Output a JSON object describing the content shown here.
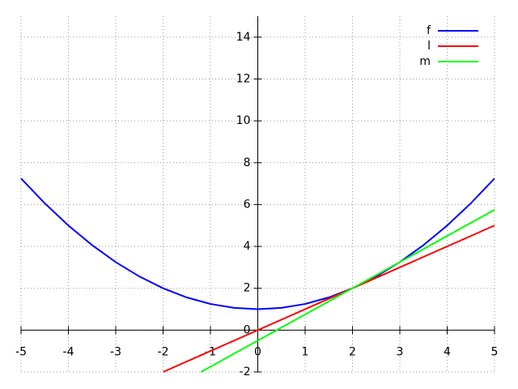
{
  "chart_data": {
    "type": "line",
    "xlim": [
      -5,
      5
    ],
    "xticks": [
      -5,
      -4,
      -3,
      -2,
      -1,
      0,
      1,
      2,
      3,
      4,
      5
    ],
    "ylim": [
      -2,
      15
    ],
    "yticks": [
      -2,
      0,
      2,
      4,
      6,
      8,
      10,
      12,
      14
    ],
    "grid": true,
    "legend": "top-right",
    "series": [
      {
        "name": "f",
        "color": "#0000ff",
        "x": [
          -5,
          -4.5,
          -4,
          -3.5,
          -3,
          -2.5,
          -2,
          -1.5,
          -1,
          -0.5,
          0,
          0.5,
          1,
          1.5,
          2,
          2.5,
          3,
          3.5,
          4,
          4.5,
          5
        ],
        "values": [
          7.25,
          6.0625,
          5,
          4.0625,
          3.25,
          2.5625,
          2,
          1.5625,
          1.25,
          1.0625,
          1,
          1.0625,
          1.25,
          1.5625,
          2,
          2.5625,
          3.25,
          4.0625,
          5,
          6.0625,
          7.25
        ]
      },
      {
        "name": "l",
        "color": "#ff0000",
        "x": [
          -2,
          5
        ],
        "values": [
          -2,
          5
        ]
      },
      {
        "name": "m",
        "color": "#00ff00",
        "x": [
          -1.2,
          5
        ],
        "values": [
          -2,
          5.75
        ]
      }
    ]
  }
}
